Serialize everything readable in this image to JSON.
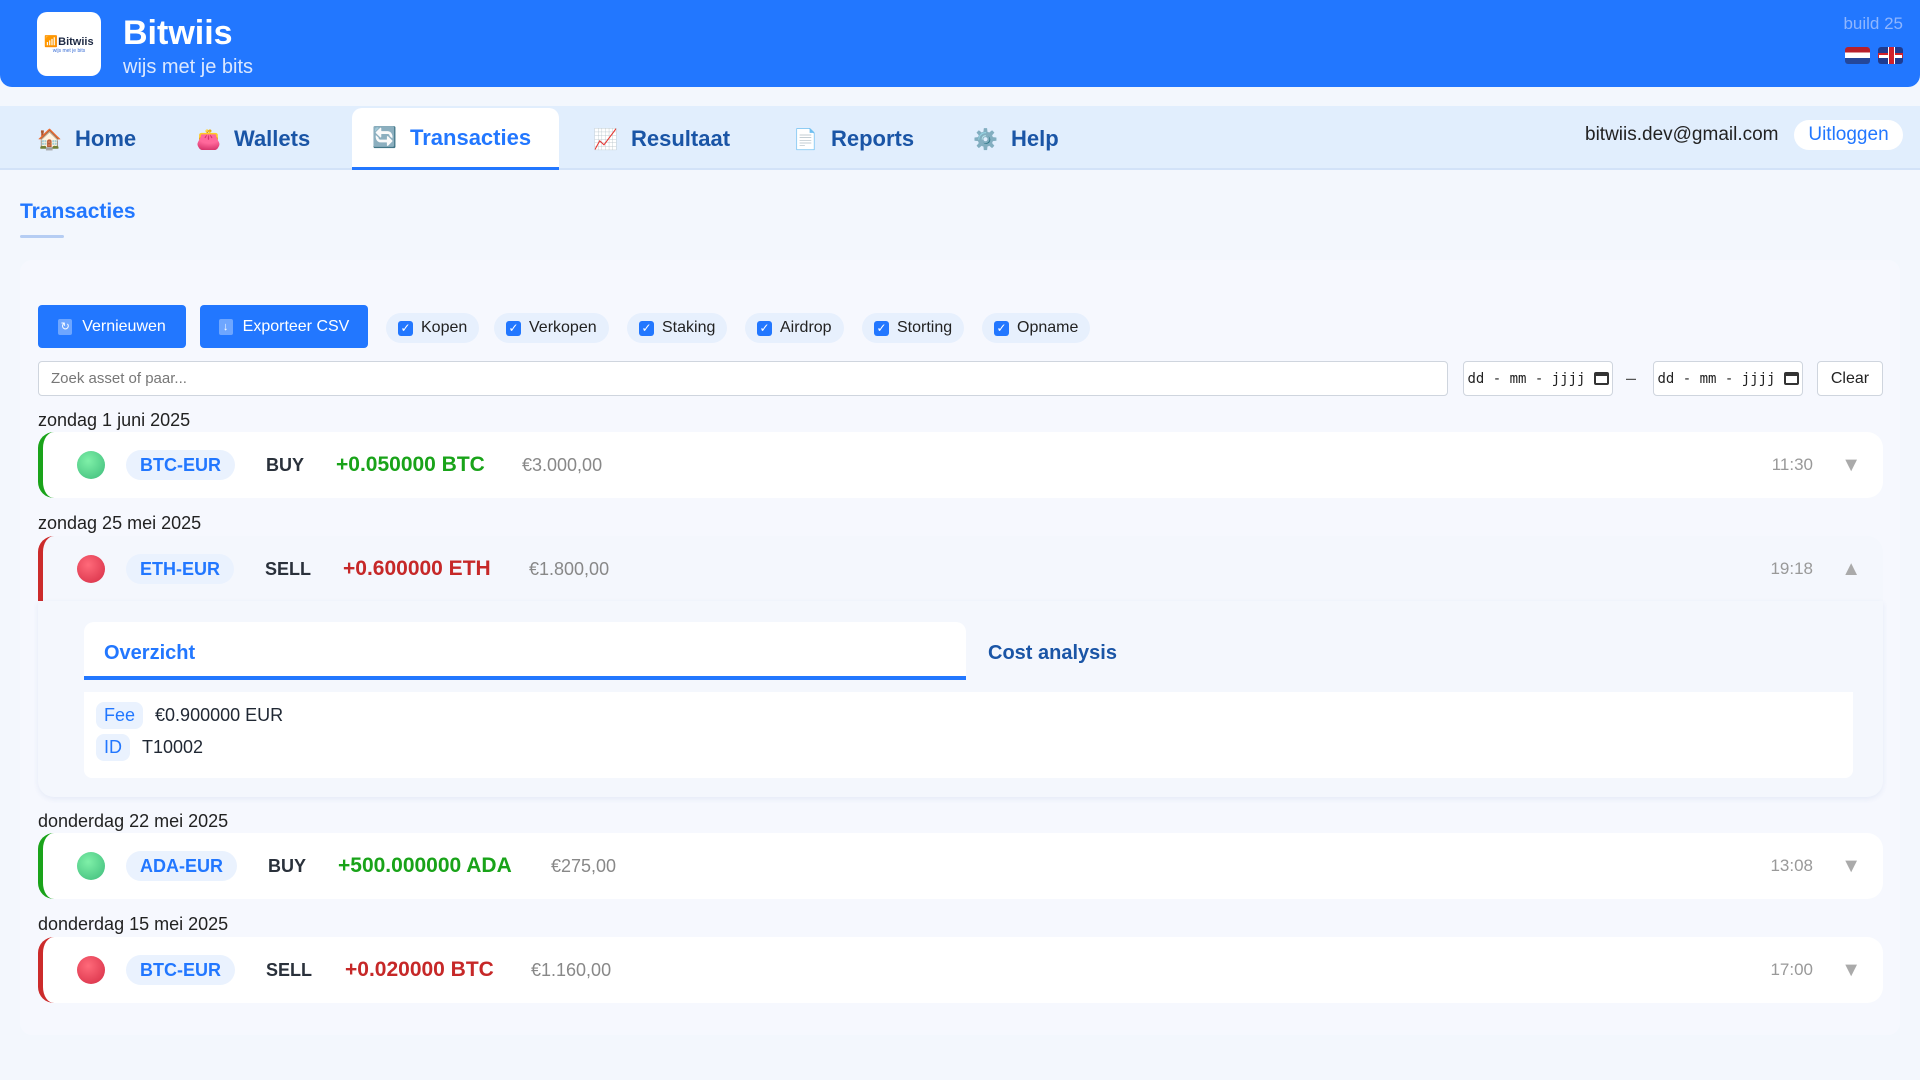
{
  "header": {
    "logo_text": "Bitwiis",
    "logo_sub": "wijs met je bits",
    "title": "Bitwiis",
    "subtitle": "wijs met je bits",
    "build": "build 25",
    "flags": [
      "nl-flag",
      "uk-flag"
    ]
  },
  "nav": {
    "tabs": [
      {
        "label": "Home",
        "icon": "house-icon"
      },
      {
        "label": "Wallets",
        "icon": "purse-icon"
      },
      {
        "label": "Transacties",
        "icon": "refresh-icon",
        "active": true
      },
      {
        "label": "Resultaat",
        "icon": "chart-icon"
      },
      {
        "label": "Reports",
        "icon": "document-icon"
      },
      {
        "label": "Help",
        "icon": "gear-icon"
      }
    ],
    "email": "bitwiis.dev@gmail.com",
    "logout": "Uitloggen"
  },
  "page": {
    "title": "Transacties"
  },
  "toolbar": {
    "refresh": "Vernieuwen",
    "export": "Exporteer CSV",
    "filters": [
      {
        "label": "Kopen",
        "checked": true
      },
      {
        "label": "Verkopen",
        "checked": true
      },
      {
        "label": "Staking",
        "checked": true
      },
      {
        "label": "Airdrop",
        "checked": true
      },
      {
        "label": "Storting",
        "checked": true
      },
      {
        "label": "Opname",
        "checked": true
      }
    ],
    "search_placeholder": "Zoek asset of paar...",
    "date_placeholder": "dd - mm - jjjj",
    "date_sep": "–",
    "clear": "Clear"
  },
  "groups": [
    {
      "date": "zondag 1 juni 2025",
      "tx": {
        "pair": "BTC-EUR",
        "side": "BUY",
        "amount": "+0.050000 BTC",
        "value": "€3.000,00",
        "time": "11:30",
        "expanded": false
      }
    },
    {
      "date": "zondag 25 mei 2025",
      "tx": {
        "pair": "ETH-EUR",
        "side": "SELL",
        "amount": "+0.600000 ETH",
        "value": "€1.800,00",
        "time": "19:18",
        "expanded": true
      }
    },
    {
      "date": "donderdag 22 mei 2025",
      "tx": {
        "pair": "ADA-EUR",
        "side": "BUY",
        "amount": "+500.000000 ADA",
        "value": "€275,00",
        "time": "13:08",
        "expanded": false
      }
    },
    {
      "date": "donderdag 15 mei 2025",
      "tx": {
        "pair": "BTC-EUR",
        "side": "SELL",
        "amount": "+0.020000 BTC",
        "value": "€1.160,00",
        "time": "17:00",
        "expanded": false
      }
    }
  ],
  "detail": {
    "tabs": [
      "Overzicht",
      "Cost analysis"
    ],
    "fee_label": "Fee",
    "fee": "€0.900000 EUR",
    "id_label": "ID",
    "id": "T10002"
  },
  "colors": {
    "brand": "#2277ff",
    "buy": "#19a319",
    "sell": "#c62828"
  }
}
